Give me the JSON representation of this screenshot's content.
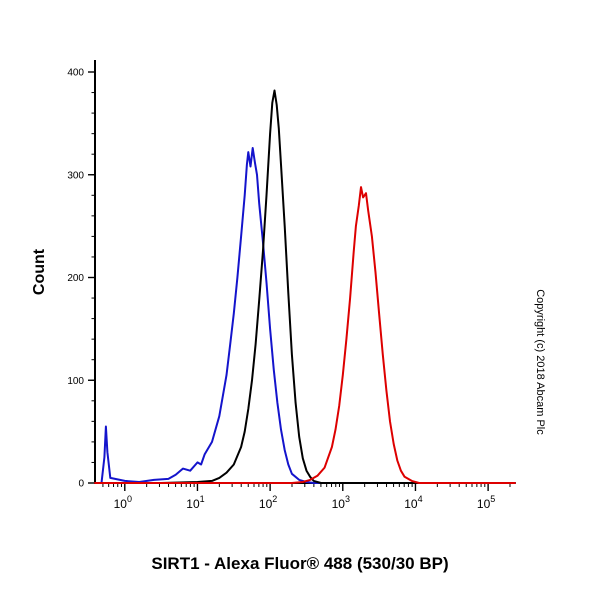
{
  "figure": {
    "title": "SIRT1 - Alexa Fluor® 488 (530/30 BP)",
    "copyright": "Copyright (c) 2018 Abcam Plc"
  },
  "chart_data": {
    "type": "line",
    "subtype": "flow-cytometry-histogram-overlay",
    "title": "SIRT1 - Alexa Fluor® 488 (530/30 BP)",
    "xlabel": "SIRT1 - Alexa Fluor® 488 (530/30 BP)",
    "ylabel": "Count",
    "x_scale": "log10",
    "x_tick_exponents": [
      0,
      1,
      2,
      3,
      4,
      5
    ],
    "x_log_range": [
      -0.41,
      5.37
    ],
    "ylim": [
      0,
      400
    ],
    "y_ticks": [
      0,
      100,
      200,
      300,
      400
    ],
    "y_minor_step": 20,
    "grid": false,
    "legend": "none",
    "series": [
      {
        "name": "blue",
        "color": "#1414cc",
        "peak_x_approx": 56,
        "peak_count_approx": 326,
        "points": [
          [
            -0.41,
            0
          ],
          [
            -0.32,
            0
          ],
          [
            -0.28,
            25
          ],
          [
            -0.26,
            55
          ],
          [
            -0.24,
            30
          ],
          [
            -0.2,
            5
          ],
          [
            0.0,
            2
          ],
          [
            0.2,
            1
          ],
          [
            0.4,
            3
          ],
          [
            0.6,
            4
          ],
          [
            0.7,
            8
          ],
          [
            0.8,
            14
          ],
          [
            0.9,
            12
          ],
          [
            1.0,
            20
          ],
          [
            1.05,
            18
          ],
          [
            1.1,
            28
          ],
          [
            1.2,
            40
          ],
          [
            1.3,
            65
          ],
          [
            1.4,
            105
          ],
          [
            1.45,
            135
          ],
          [
            1.5,
            165
          ],
          [
            1.55,
            200
          ],
          [
            1.6,
            240
          ],
          [
            1.65,
            280
          ],
          [
            1.68,
            310
          ],
          [
            1.7,
            322
          ],
          [
            1.73,
            308
          ],
          [
            1.76,
            326
          ],
          [
            1.79,
            312
          ],
          [
            1.82,
            300
          ],
          [
            1.85,
            272
          ],
          [
            1.9,
            235
          ],
          [
            1.95,
            195
          ],
          [
            2.0,
            150
          ],
          [
            2.05,
            110
          ],
          [
            2.1,
            78
          ],
          [
            2.15,
            52
          ],
          [
            2.2,
            32
          ],
          [
            2.25,
            18
          ],
          [
            2.3,
            9
          ],
          [
            2.4,
            3
          ],
          [
            2.5,
            1
          ],
          [
            2.6,
            0
          ],
          [
            5.37,
            0
          ]
        ]
      },
      {
        "name": "black",
        "color": "#000000",
        "peak_x_approx": 110,
        "peak_count_approx": 382,
        "points": [
          [
            -0.41,
            0
          ],
          [
            0.5,
            0
          ],
          [
            1.0,
            1
          ],
          [
            1.2,
            2
          ],
          [
            1.3,
            5
          ],
          [
            1.4,
            10
          ],
          [
            1.5,
            18
          ],
          [
            1.6,
            35
          ],
          [
            1.65,
            50
          ],
          [
            1.7,
            72
          ],
          [
            1.75,
            100
          ],
          [
            1.8,
            135
          ],
          [
            1.85,
            178
          ],
          [
            1.9,
            225
          ],
          [
            1.95,
            280
          ],
          [
            2.0,
            340
          ],
          [
            2.03,
            370
          ],
          [
            2.06,
            382
          ],
          [
            2.09,
            368
          ],
          [
            2.12,
            345
          ],
          [
            2.15,
            310
          ],
          [
            2.2,
            250
          ],
          [
            2.25,
            185
          ],
          [
            2.3,
            125
          ],
          [
            2.35,
            78
          ],
          [
            2.4,
            45
          ],
          [
            2.45,
            24
          ],
          [
            2.5,
            12
          ],
          [
            2.55,
            6
          ],
          [
            2.6,
            2
          ],
          [
            2.7,
            0
          ],
          [
            5.37,
            0
          ]
        ]
      },
      {
        "name": "red",
        "color": "#dd0000",
        "peak_x_approx": 1600,
        "peak_count_approx": 288,
        "points": [
          [
            -0.41,
            0
          ],
          [
            2.3,
            0
          ],
          [
            2.45,
            1
          ],
          [
            2.55,
            3
          ],
          [
            2.65,
            7
          ],
          [
            2.75,
            15
          ],
          [
            2.85,
            35
          ],
          [
            2.9,
            52
          ],
          [
            2.95,
            75
          ],
          [
            3.0,
            105
          ],
          [
            3.05,
            140
          ],
          [
            3.1,
            180
          ],
          [
            3.15,
            225
          ],
          [
            3.18,
            250
          ],
          [
            3.22,
            270
          ],
          [
            3.25,
            288
          ],
          [
            3.28,
            278
          ],
          [
            3.32,
            282
          ],
          [
            3.35,
            265
          ],
          [
            3.4,
            240
          ],
          [
            3.45,
            205
          ],
          [
            3.5,
            165
          ],
          [
            3.55,
            125
          ],
          [
            3.6,
            90
          ],
          [
            3.65,
            60
          ],
          [
            3.7,
            38
          ],
          [
            3.75,
            22
          ],
          [
            3.8,
            12
          ],
          [
            3.85,
            6
          ],
          [
            3.95,
            2
          ],
          [
            4.05,
            0
          ],
          [
            5.37,
            0
          ]
        ]
      }
    ]
  }
}
